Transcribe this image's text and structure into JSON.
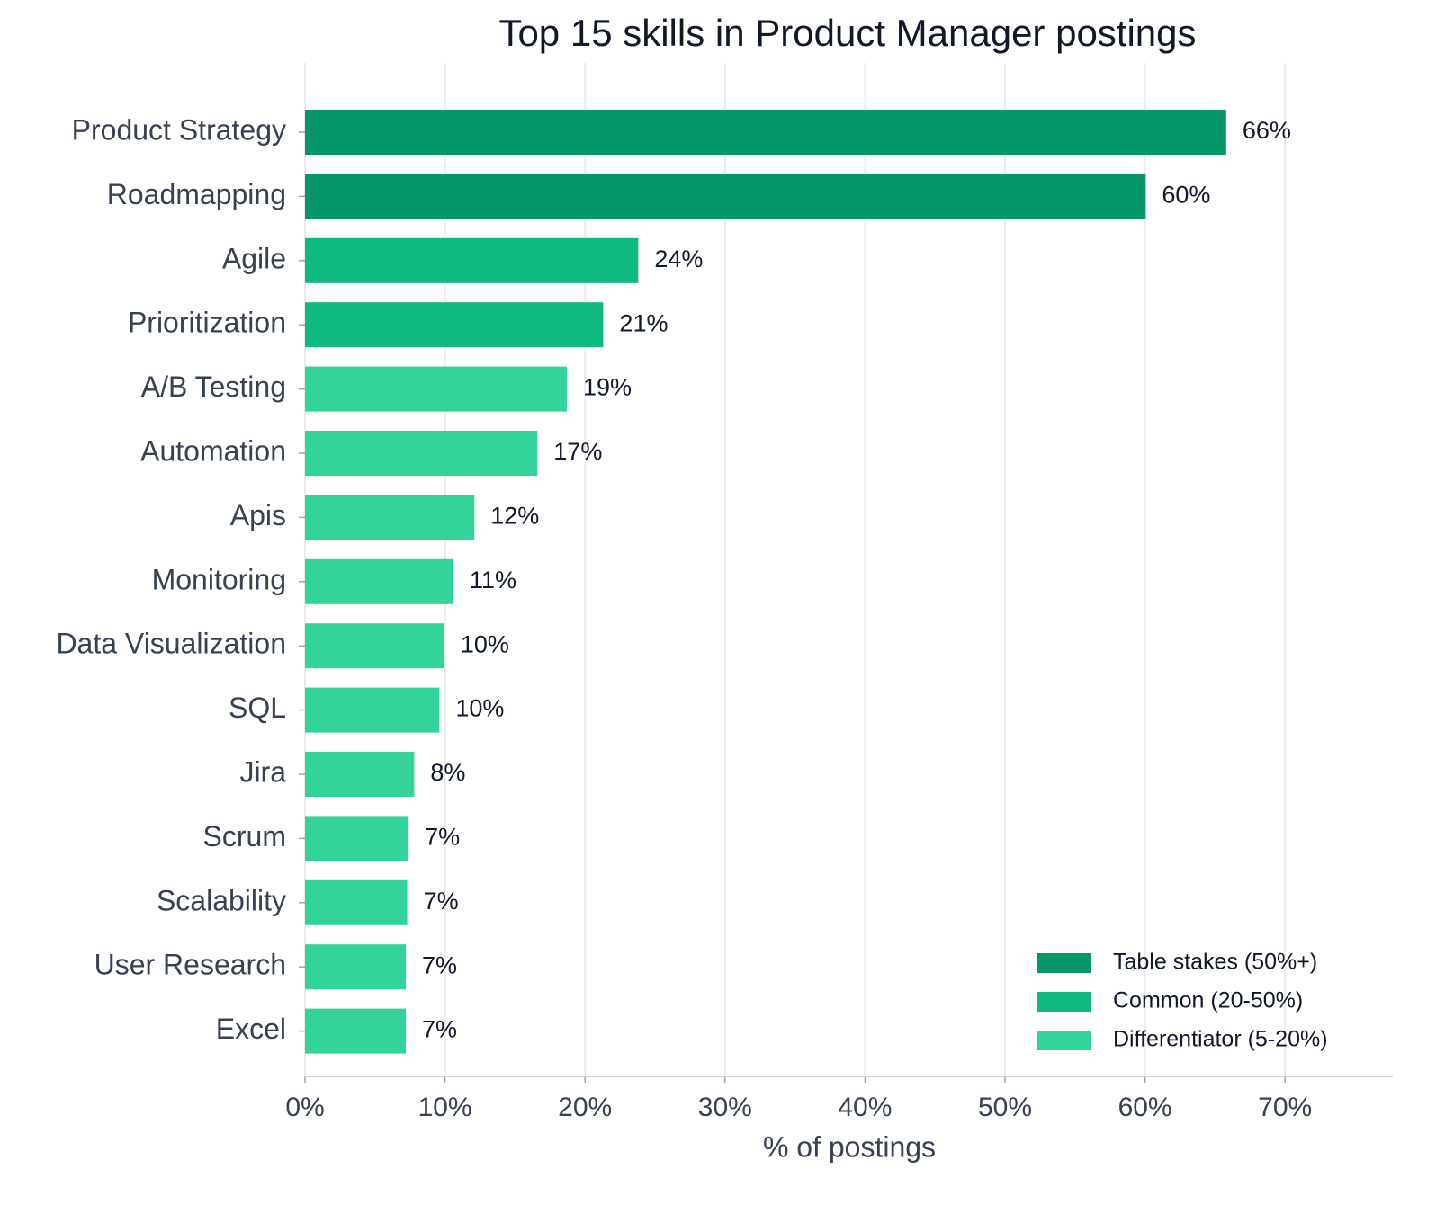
{
  "chart_data": {
    "type": "barh",
    "title": "Top 15 skills in Product Manager postings",
    "xlabel": "% of postings",
    "categories": [
      "Product Strategy",
      "Roadmapping",
      "Agile",
      "Prioritization",
      "A/B Testing",
      "Automation",
      "Apis",
      "Monitoring",
      "Data Visualization",
      "SQL",
      "Jira",
      "Scrum",
      "Scalability",
      "User Research",
      "Excel"
    ],
    "values": [
      65.8,
      60.05,
      23.8,
      21.3,
      18.7,
      16.6,
      12.1,
      10.6,
      9.95,
      9.6,
      7.8,
      7.4,
      7.3,
      7.2,
      7.2
    ],
    "value_labels": [
      "66%",
      "60%",
      "24%",
      "21%",
      "19%",
      "17%",
      "12%",
      "11%",
      "10%",
      "10%",
      "8%",
      "7%",
      "7%",
      "7%",
      "7%"
    ],
    "colors": [
      "#059669",
      "#059669",
      "#10b981",
      "#10b981",
      "#34d399",
      "#34d399",
      "#34d399",
      "#34d399",
      "#34d399",
      "#34d399",
      "#34d399",
      "#34d399",
      "#34d399",
      "#34d399",
      "#34d399"
    ],
    "legend": [
      {
        "name": "Table stakes (50%+)",
        "color": "#059669"
      },
      {
        "name": "Common (20-50%)",
        "color": "#10b981"
      },
      {
        "name": "Differentiator (5-20%)",
        "color": "#34d399"
      }
    ],
    "legend_position": "lower right",
    "xlim": [
      0,
      77.7
    ],
    "xticks": [
      {
        "value": 0,
        "label": "0%"
      },
      {
        "value": 10,
        "label": "10%"
      },
      {
        "value": 20,
        "label": "20%"
      },
      {
        "value": 30,
        "label": "30%"
      },
      {
        "value": 40,
        "label": "40%"
      },
      {
        "value": 50,
        "label": "50%"
      },
      {
        "value": 60,
        "label": "60%"
      },
      {
        "value": 70,
        "label": "70%"
      }
    ],
    "grid": true
  }
}
